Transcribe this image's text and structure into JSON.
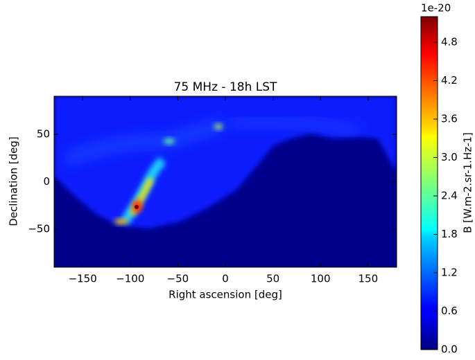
{
  "chart_data": {
    "type": "image",
    "title": "75 MHz - 18h LST",
    "xlabel": "Right ascension [deg]",
    "ylabel": "Declination [deg]",
    "xlim": [
      -180,
      180
    ],
    "ylim": [
      -90,
      90
    ],
    "xticks": [
      {
        "value": -150,
        "label": "−150"
      },
      {
        "value": -100,
        "label": "−100"
      },
      {
        "value": -50,
        "label": "−50"
      },
      0,
      50,
      100,
      150
    ],
    "yticks": [
      {
        "value": -50,
        "label": "−50"
      },
      0,
      50
    ],
    "colorbar": {
      "label": "B [W.m-2.sr-1.Hz-1]",
      "offset_text": "1e-20",
      "colormap": "jet",
      "lim": [
        0,
        5.2
      ],
      "ticks": [
        {
          "value": 0,
          "label": "0.0"
        },
        {
          "value": 0.6,
          "label": "0.6"
        },
        {
          "value": 1.2,
          "label": "1.2"
        },
        {
          "value": 1.8,
          "label": "1.8"
        },
        {
          "value": 2.4,
          "label": "2.4"
        },
        {
          "value": 3.0,
          "label": "3.0"
        },
        {
          "value": 3.6,
          "label": "3.6"
        },
        {
          "value": 4.2,
          "label": "4.2"
        },
        {
          "value": 4.8,
          "label": "4.8"
        }
      ]
    }
  }
}
